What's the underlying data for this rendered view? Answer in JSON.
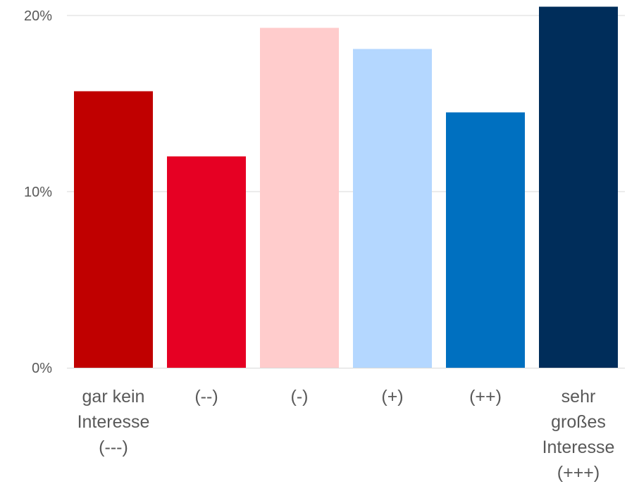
{
  "chart_data": {
    "type": "bar",
    "categories": [
      [
        "gar kein",
        "Interesse",
        "(---)"
      ],
      [
        "(--)"
      ],
      [
        "(-)"
      ],
      [
        "(+)"
      ],
      [
        "(++)"
      ],
      [
        "sehr",
        "großes",
        "Interesse",
        "(+++)"
      ]
    ],
    "values": [
      15.7,
      12.0,
      19.3,
      18.1,
      14.5,
      20.5
    ],
    "colors": [
      "#C00000",
      "#E60023",
      "#FFCCCC",
      "#B4D7FF",
      "#0070C0",
      "#002D5A"
    ],
    "yticks": [
      "0%",
      "10%",
      "20%"
    ],
    "ytick_values": [
      0,
      10,
      20
    ],
    "ylim": [
      0,
      20.5
    ],
    "grid": true,
    "title": "",
    "xlabel": "",
    "ylabel": ""
  }
}
